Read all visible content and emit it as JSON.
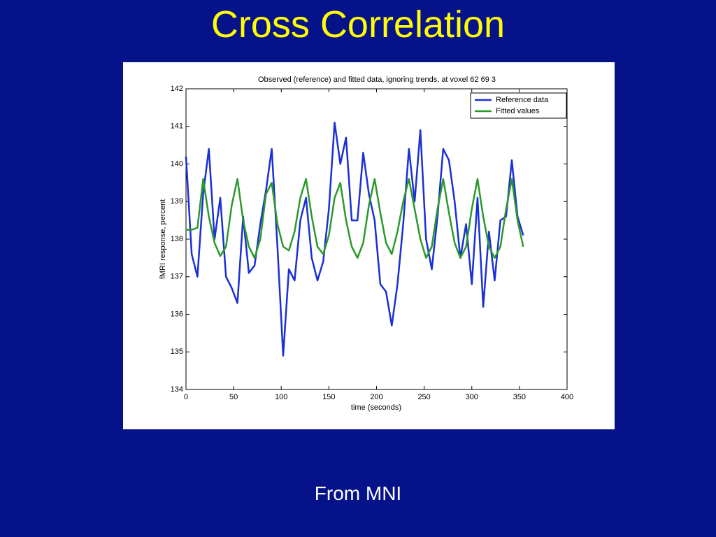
{
  "slide": {
    "title": "Cross Correlation",
    "footer": "From MNI"
  },
  "chart_data": {
    "type": "line",
    "title": "Observed (reference) and fitted data, ignoring trends, at voxel 62  69   3",
    "x_label": "time (seconds)",
    "y_label": "fMRI response, percent",
    "x": [
      0,
      6,
      12,
      18,
      24,
      30,
      36,
      42,
      48,
      54,
      60,
      66,
      72,
      78,
      84,
      90,
      96,
      102,
      108,
      114,
      120,
      126,
      132,
      138,
      144,
      150,
      156,
      162,
      168,
      174,
      180,
      186,
      192,
      198,
      204,
      210,
      216,
      222,
      228,
      234,
      240,
      246,
      252,
      258,
      264,
      270,
      276,
      282,
      288,
      294,
      300,
      306,
      312,
      318,
      324,
      330,
      336,
      342,
      348,
      354
    ],
    "series": [
      {
        "name": "Reference data",
        "color": "#1a2fd6",
        "values": [
          140.2,
          137.6,
          137.0,
          139.2,
          140.4,
          138.0,
          139.1,
          137.0,
          136.7,
          136.3,
          138.6,
          137.1,
          137.3,
          138.4,
          139.3,
          140.4,
          137.8,
          134.9,
          137.2,
          136.9,
          138.5,
          139.1,
          137.5,
          136.9,
          137.4,
          138.8,
          141.1,
          140.0,
          140.7,
          138.5,
          138.5,
          140.3,
          139.2,
          138.5,
          136.8,
          136.6,
          135.7,
          136.8,
          138.4,
          140.4,
          139.0,
          140.9,
          138.0,
          137.2,
          138.6,
          140.4,
          140.1,
          139.0,
          137.5,
          138.4,
          136.8,
          139.1,
          136.2,
          138.2,
          136.9,
          138.5,
          138.6,
          140.1,
          138.6,
          138.1
        ]
      },
      {
        "name": "Fitted values",
        "color": "#2b9a2b",
        "values": [
          138.25,
          138.25,
          138.3,
          139.6,
          138.6,
          137.9,
          137.55,
          137.8,
          138.9,
          139.6,
          138.5,
          137.8,
          137.5,
          138.0,
          139.2,
          139.5,
          138.4,
          137.8,
          137.7,
          138.2,
          139.1,
          139.6,
          138.6,
          137.8,
          137.6,
          138.1,
          139.1,
          139.5,
          138.5,
          137.8,
          137.5,
          137.9,
          138.9,
          139.6,
          138.7,
          137.9,
          137.6,
          138.2,
          139.0,
          139.6,
          138.8,
          138.0,
          137.5,
          137.8,
          138.8,
          139.6,
          138.7,
          137.9,
          137.5,
          137.8,
          138.8,
          139.6,
          138.6,
          137.8,
          137.5,
          137.8,
          138.8,
          139.6,
          138.5,
          137.8
        ]
      }
    ],
    "xlim": [
      0,
      400
    ],
    "xticks": [
      0,
      50,
      100,
      150,
      200,
      250,
      300,
      350,
      400
    ],
    "ylim": [
      134,
      142
    ],
    "yticks": [
      134,
      135,
      136,
      137,
      138,
      139,
      140,
      141,
      142
    ],
    "grid": false,
    "legend": "northeast"
  }
}
